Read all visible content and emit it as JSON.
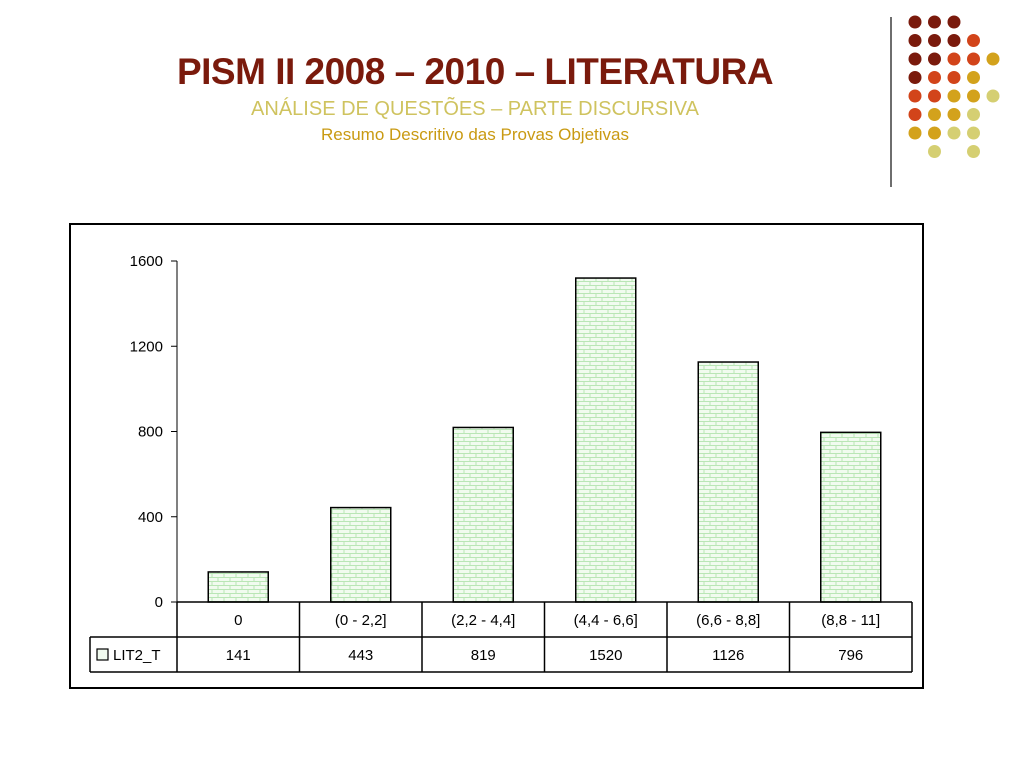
{
  "slide": {
    "title": "PISM II 2008 – 2010 – LITERATURA",
    "subtitle": "ANÁLISE DE QUESTÕES – PARTE DISCURSIVA",
    "subtitle2": "Resumo Descritivo das Provas Objetivas"
  },
  "colors": {
    "title": "#7a1a0c",
    "subtitle": "#cfc35f",
    "subtitle2": "#c99a12",
    "bar_fill": "#f1fbef",
    "bar_pattern": "#b9e6b5",
    "dot_dark": "#7a1a0c",
    "dot_orange": "#d2441a",
    "dot_gold": "#d3a21c",
    "dot_khaki": "#d5cf72"
  },
  "chart_data": {
    "type": "bar",
    "categories": [
      "0",
      "(0 - 2,2]",
      "(2,2 - 4,4]",
      "(4,4 - 6,6]",
      "(6,6 - 8,8]",
      "(8,8 - 11]"
    ],
    "series": [
      {
        "name": "LIT2_T",
        "values": [
          141,
          443,
          819,
          1520,
          1126,
          796
        ]
      }
    ],
    "y_ticks": [
      0,
      400,
      800,
      1200,
      1600
    ],
    "ylim": [
      0,
      1600
    ],
    "data_table": true,
    "legend": "in-data-table"
  }
}
